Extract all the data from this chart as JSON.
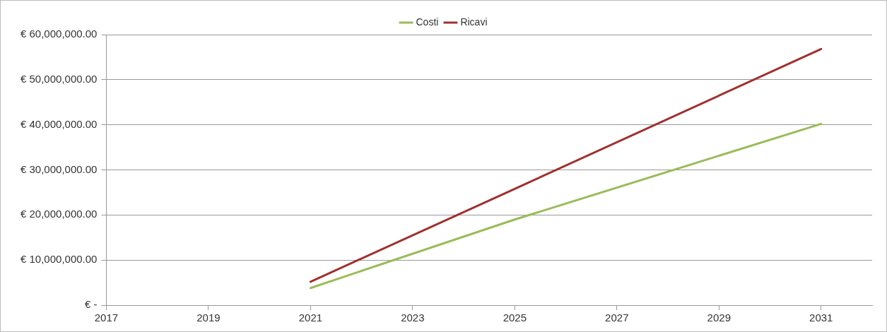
{
  "chart_data": {
    "type": "line",
    "x": [
      2021,
      2025,
      2031
    ],
    "series": [
      {
        "name": "Costi",
        "color": "#9bbb59",
        "values": [
          3800000,
          19000000,
          40200000
        ]
      },
      {
        "name": "Ricavi",
        "color": "#a0302e",
        "values": [
          5200000,
          25800000,
          56800000
        ]
      }
    ],
    "xlim": [
      2017,
      2032
    ],
    "xticks": [
      2017,
      2019,
      2021,
      2023,
      2025,
      2027,
      2029,
      2031
    ],
    "ylim": [
      0,
      60000000
    ],
    "yticks": [
      {
        "value": 0,
        "label": "€ -"
      },
      {
        "value": 10000000,
        "label": "€ 10,000,000.00"
      },
      {
        "value": 20000000,
        "label": "€ 20,000,000.00"
      },
      {
        "value": 30000000,
        "label": "€ 30,000,000.00"
      },
      {
        "value": 40000000,
        "label": "€ 40,000,000.00"
      },
      {
        "value": 50000000,
        "label": "€ 50,000,000.00"
      },
      {
        "value": 60000000,
        "label": "€ 60,000,000.00"
      }
    ],
    "grid": "y",
    "legend": "top",
    "marker": "none",
    "line_style": "solid"
  }
}
